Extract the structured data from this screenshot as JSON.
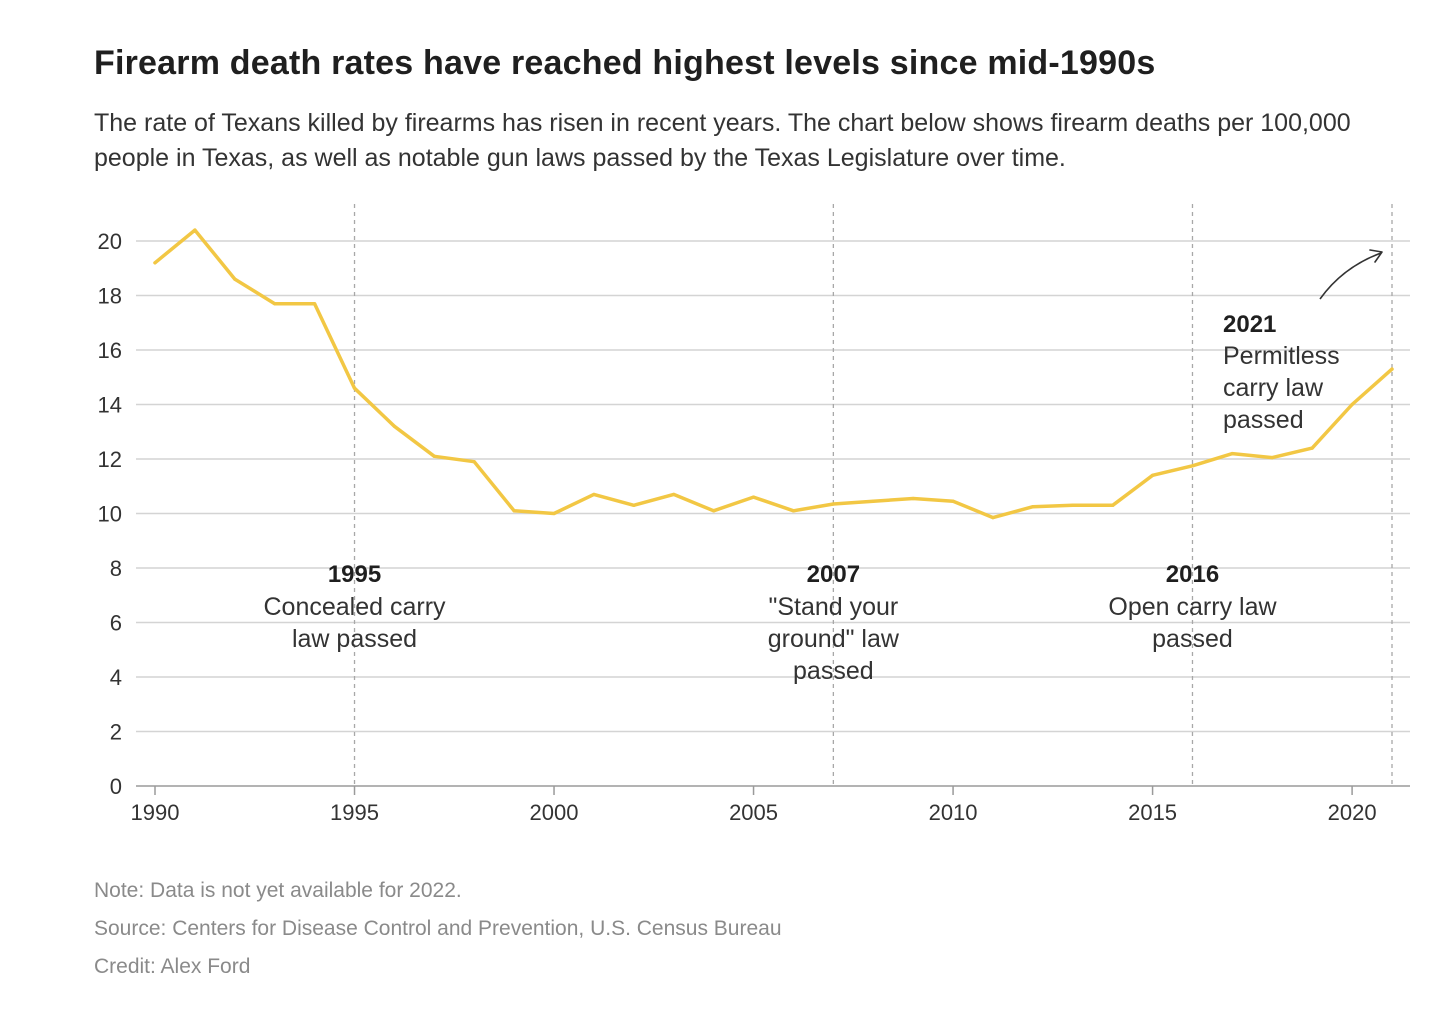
{
  "header": {
    "title": "Firearm death rates have reached highest levels since mid-1990s",
    "subtitle": "The rate of Texans killed by firearms has risen in recent years. The chart below shows firearm deaths per 100,000 people in Texas, as well as notable gun laws passed by the Texas Legislature over time."
  },
  "chart_data": {
    "type": "line",
    "title": "Firearm death rates have reached highest levels since mid-1990s",
    "xlabel": "",
    "ylabel": "",
    "xlim": [
      1990,
      2021
    ],
    "ylim": [
      0,
      20
    ],
    "x_ticks": [
      1990,
      1995,
      2000,
      2005,
      2010,
      2015,
      2020
    ],
    "y_ticks": [
      0,
      2,
      4,
      6,
      8,
      10,
      12,
      14,
      16,
      18,
      20
    ],
    "grid": "horizontal",
    "line_color": "#f2c744",
    "x": [
      1990,
      1991,
      1992,
      1993,
      1994,
      1995,
      1996,
      1997,
      1998,
      1999,
      2000,
      2001,
      2002,
      2003,
      2004,
      2005,
      2006,
      2007,
      2008,
      2009,
      2010,
      2011,
      2012,
      2013,
      2014,
      2015,
      2016,
      2017,
      2018,
      2019,
      2020,
      2021
    ],
    "series": [
      {
        "values": [
          19.2,
          20.4,
          18.6,
          17.7,
          17.7,
          14.6,
          13.2,
          12.1,
          11.9,
          10.1,
          10.0,
          10.7,
          10.3,
          10.7,
          10.1,
          10.6,
          10.1,
          10.35,
          10.45,
          10.55,
          10.45,
          9.85,
          10.25,
          10.3,
          10.3,
          11.4,
          11.75,
          12.2,
          12.05,
          12.4,
          14.0,
          15.3
        ]
      }
    ],
    "annotations": [
      {
        "year": 1995,
        "label_year": "1995",
        "lines": [
          "Concealed carry",
          "law passed"
        ]
      },
      {
        "year": 2007,
        "label_year": "2007",
        "lines": [
          "\"Stand your",
          "ground\" law",
          "passed"
        ]
      },
      {
        "year": 2016,
        "label_year": "2016",
        "lines": [
          "Open carry law",
          "passed"
        ]
      },
      {
        "year": 2021,
        "label_year": "2021",
        "lines": [
          "Permitless",
          "carry law",
          "passed"
        ]
      }
    ]
  },
  "footer": {
    "note": "Note: Data is not yet available for 2022.",
    "source": "Source: Centers for Disease Control and Prevention, U.S. Census Bureau",
    "credit": "Credit: Alex Ford"
  }
}
